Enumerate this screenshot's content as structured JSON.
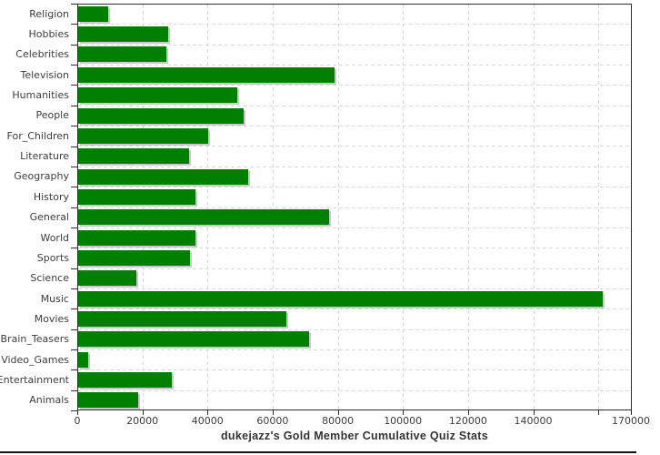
{
  "chart_data": {
    "type": "bar",
    "orientation": "horizontal",
    "title": "dukejazz's Gold Member Cumulative Quiz Stats",
    "categories": [
      "Religion",
      "Hobbies",
      "Celebrities",
      "Television",
      "Humanities",
      "People",
      "For_Children",
      "Literature",
      "Geography",
      "History",
      "General",
      "World",
      "Sports",
      "Science",
      "Music",
      "Movies",
      "Brain_Teasers",
      "Video_Games",
      "Entertainment",
      "Animals"
    ],
    "values": [
      9100,
      27700,
      27000,
      78800,
      48900,
      50800,
      39800,
      34000,
      52100,
      36100,
      77000,
      36100,
      34400,
      18000,
      161000,
      64000,
      70900,
      3100,
      28700,
      18300
    ],
    "xlim": [
      0,
      170000
    ],
    "x_ticks": [
      0,
      20000,
      40000,
      60000,
      80000,
      100000,
      120000,
      140000,
      160000,
      170000
    ],
    "x_tick_labels": [
      {
        "value": 0,
        "text": "0"
      },
      {
        "value": 20000,
        "text": "20000"
      },
      {
        "value": 40000,
        "text": "40000"
      },
      {
        "value": 60000,
        "text": "60000"
      },
      {
        "value": 80000,
        "text": "80000"
      },
      {
        "value": 100000,
        "text": "100000"
      },
      {
        "value": 120000,
        "text": "120000"
      },
      {
        "value": 140000,
        "text": "140000"
      },
      {
        "value": 170000,
        "text": "170000"
      }
    ],
    "x_gridlines": [
      20000,
      40000,
      60000,
      80000,
      100000,
      120000,
      140000,
      160000
    ],
    "grid": true,
    "legend": false,
    "xlabel": "",
    "ylabel": "",
    "colors": {
      "bar": "#008000",
      "bar_shadow": "#c9c9c9",
      "gridline": "#d9d9d9",
      "frame": "#2e2e2e",
      "tick_text": "#3d3d3d",
      "title_text": "#333333",
      "bottom_rule": "#111111",
      "background": "#ffffff"
    }
  }
}
